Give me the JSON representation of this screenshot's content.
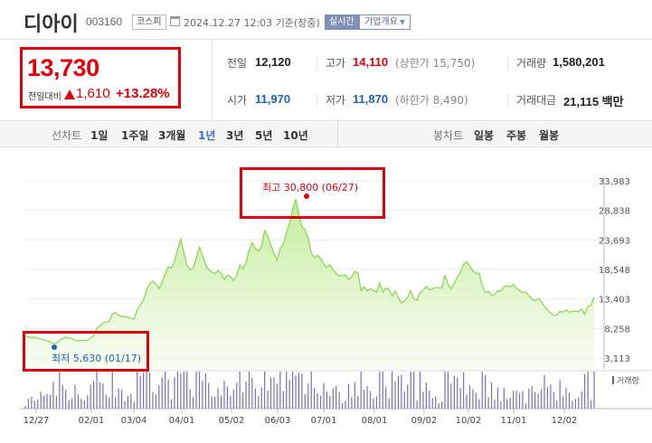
{
  "stock": {
    "name": "디아이",
    "code": "003160",
    "market": "코스피",
    "datetime": "2024.12.27 12:03",
    "basis": "기준(장중)",
    "realtime_label": "실시간",
    "company_info_label": "기업개요"
  },
  "price": {
    "current": "13,730",
    "change_label": "전일대비",
    "change_value": "1,610",
    "change_pct": "+13.28%",
    "direction": "up",
    "color_up": "#e0000b"
  },
  "stats": {
    "prev_close": {
      "label": "전일",
      "value": "12,120"
    },
    "high": {
      "label": "고가",
      "value": "14,110",
      "sub": "(상한가 15,750)"
    },
    "volume": {
      "label": "거래량",
      "value": "1,580,201"
    },
    "open": {
      "label": "시가",
      "value": "11,970"
    },
    "low": {
      "label": "저가",
      "value": "11,870",
      "sub": "(하한가 8,490)"
    },
    "trade_value": {
      "label": "거래대금",
      "value": "21,115 백만"
    }
  },
  "tabs": {
    "line_label": "선차트",
    "periods": [
      "1일",
      "1주일",
      "3개월",
      "1년",
      "3년",
      "5년",
      "10년"
    ],
    "active_period": "1년",
    "candle_label": "봉차트",
    "candle_periods": [
      "일봉",
      "주봉",
      "월봉"
    ]
  },
  "chart_data": {
    "type": "area",
    "title": "",
    "xlabel": "",
    "ylabel": "",
    "x_ticks": [
      "12/27",
      "02/01",
      "03/04",
      "04/01",
      "05/02",
      "06/03",
      "07/01",
      "08/01",
      "09/02",
      "10/02",
      "11/01",
      "12/02"
    ],
    "y_ticks": [
      33983,
      28838,
      23693,
      18548,
      13403,
      8258,
      3113
    ],
    "ylim": [
      3113,
      33983
    ],
    "line_color": "#8fd65a",
    "fill_color": "#c9f1a4",
    "max_annotation": {
      "label": "최고",
      "value": "30,800",
      "date": "(06/27)",
      "color": "#e0000b"
    },
    "min_annotation": {
      "label": "최저",
      "value": "5,630",
      "date": "(01/17)",
      "color": "#1e64b4"
    },
    "volume_label": "거래량",
    "series": [
      {
        "values": [
          6900,
          6800,
          6700,
          6700,
          6600,
          6400,
          6300,
          6100,
          5950,
          5630,
          5700,
          6200,
          6500,
          6700,
          6600,
          6500,
          6200,
          6100,
          6200,
          6150,
          6250,
          6600,
          7000,
          8300,
          8700,
          9200,
          9400,
          9500,
          10800,
          11000,
          10600,
          10300,
          10400,
          10200,
          10000,
          9900,
          11500,
          12300,
          13200,
          14900,
          16100,
          16500,
          16000,
          15200,
          16200,
          17800,
          19000,
          18800,
          20000,
          22000,
          23800,
          21500,
          19300,
          18500,
          18800,
          20500,
          22400,
          21000,
          19400,
          18500,
          18100,
          17800,
          18400,
          17900,
          16800,
          17500,
          17300,
          16600,
          17500,
          19300,
          18600,
          19700,
          21900,
          23200,
          22200,
          21800,
          22600,
          25300,
          24400,
          22800,
          21400,
          20200,
          22300,
          22900,
          25000,
          26600,
          28900,
          30800,
          28200,
          26000,
          25500,
          24000,
          21400,
          20600,
          21000,
          20500,
          19400,
          18900,
          19400,
          18600,
          17800,
          17400,
          17500,
          17600,
          16800,
          17200,
          18200,
          17900,
          14900,
          15500,
          14800,
          15200,
          14900,
          14600,
          16200,
          14600,
          15300,
          15100,
          13900,
          14800,
          13700,
          12700,
          13000,
          13700,
          14900,
          13400,
          13200,
          14500,
          14900,
          15600,
          15000,
          15200,
          15400,
          15300,
          15400,
          17500,
          16000,
          15100,
          16200,
          17200,
          18000,
          19500,
          19900,
          19100,
          18300,
          17800,
          17900,
          15700,
          14500,
          14700,
          14000,
          14200,
          14800,
          14800,
          15500,
          15700,
          15500,
          15900,
          15300,
          14900,
          14500,
          14600,
          14000,
          13400,
          13100,
          13500,
          13000,
          12100,
          11500,
          10900,
          10600,
          10600,
          11300,
          11100,
          11500,
          11100,
          11200,
          11300,
          11200,
          11600,
          10700,
          12120,
          12300,
          13730
        ]
      }
    ]
  }
}
